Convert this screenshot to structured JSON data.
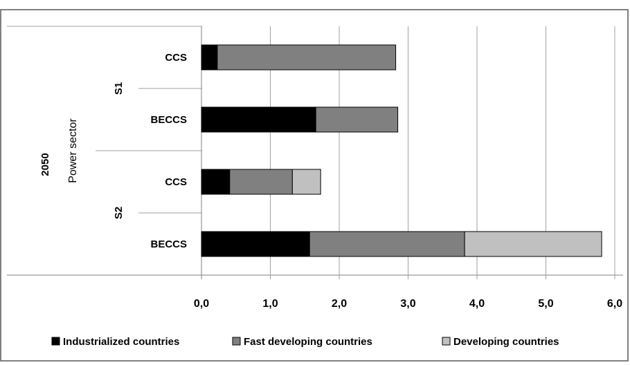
{
  "chart_data": {
    "type": "bar",
    "orientation": "horizontal",
    "stacked": true,
    "outer_label": "2050",
    "outer_label_2": "Power sector",
    "groups": [
      "S1",
      "S2"
    ],
    "categories": [
      {
        "group": "S1",
        "label": "CCS"
      },
      {
        "group": "S1",
        "label": "BECCS"
      },
      {
        "group": "S2",
        "label": "CCS"
      },
      {
        "group": "S2",
        "label": "BECCS"
      }
    ],
    "series": [
      {
        "name": "Industrialized countries",
        "values": [
          0.23,
          1.66,
          0.41,
          1.57
        ],
        "color": "#000000"
      },
      {
        "name": "Fast developing countries",
        "values": [
          2.59,
          1.19,
          0.91,
          2.25
        ],
        "color": "#808080"
      },
      {
        "name": "Developing countries",
        "values": [
          0.0,
          0.0,
          0.41,
          1.99
        ],
        "color": "#c0c0c0"
      }
    ],
    "xlim": [
      0,
      6
    ],
    "xticks": [
      "0,0",
      "1,0",
      "2,0",
      "3,0",
      "4,0",
      "5,0",
      "6,0"
    ],
    "grid": true,
    "legend_position": "bottom"
  }
}
